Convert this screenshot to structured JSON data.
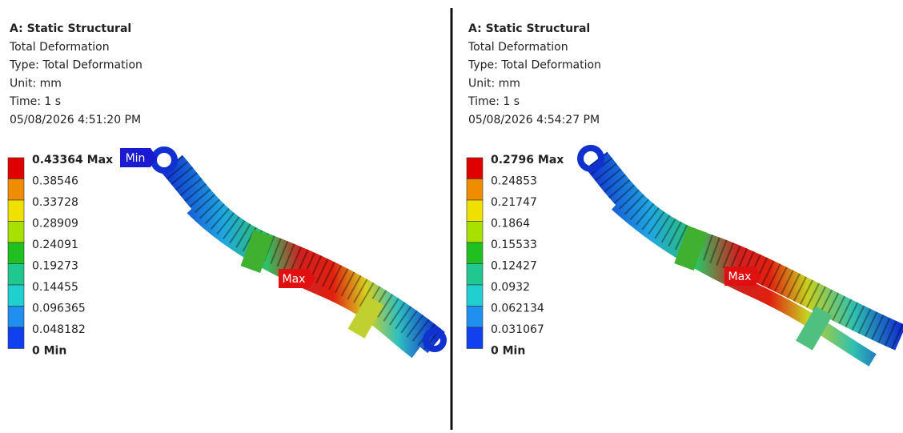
{
  "panels": [
    {
      "header": [
        "A: Static Structural",
        "Total Deformation",
        "Type: Total Deformation",
        "Unit: mm",
        "Time: 1 s",
        "05/08/2026 4:51:20 PM"
      ],
      "legend": [
        "0.43364 Max",
        "0.38546",
        "0.33728",
        "0.28909",
        "0.24091",
        "0.19273",
        "0.14455",
        "0.096365",
        "0.048182",
        "0 Min"
      ],
      "probes": [
        "Min",
        "Max"
      ]
    },
    {
      "header": [
        "A: Static Structural",
        "Total Deformation",
        "Type: Total Deformation",
        "Unit: mm",
        "Time: 1 s",
        "05/08/2026 4:54:27 PM"
      ],
      "legend": [
        "0.2796 Max",
        "0.24853",
        "0.21747",
        "0.1864",
        "0.15533",
        "0.12427",
        "0.0932",
        "0.062134",
        "0.031067",
        "0 Min"
      ],
      "probes": [
        "Max"
      ]
    }
  ]
}
